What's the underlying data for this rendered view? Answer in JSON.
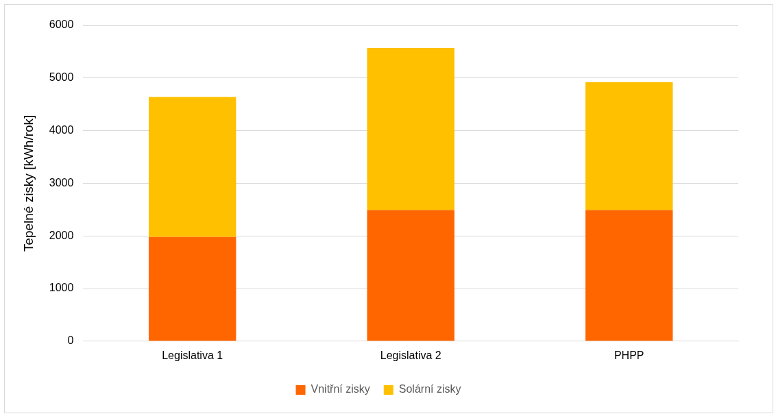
{
  "chart_data": {
    "type": "bar",
    "stacked": true,
    "ylabel": "Tepelné zisky [kWh/rok]",
    "categories": [
      "Legislativa 1",
      "Legislativa 2",
      "PHPP"
    ],
    "series": [
      {
        "name": "Vnitřní zisky",
        "color": "#ff6600",
        "values": [
          1980,
          2490,
          2490
        ]
      },
      {
        "name": "Solární zisky",
        "color": "#ffc000",
        "values": [
          2660,
          3080,
          2430
        ]
      }
    ],
    "ylim": [
      0,
      6000
    ],
    "yticks": [
      0,
      1000,
      2000,
      3000,
      4000,
      5000,
      6000
    ],
    "grid": "y",
    "legend": "bottom"
  }
}
